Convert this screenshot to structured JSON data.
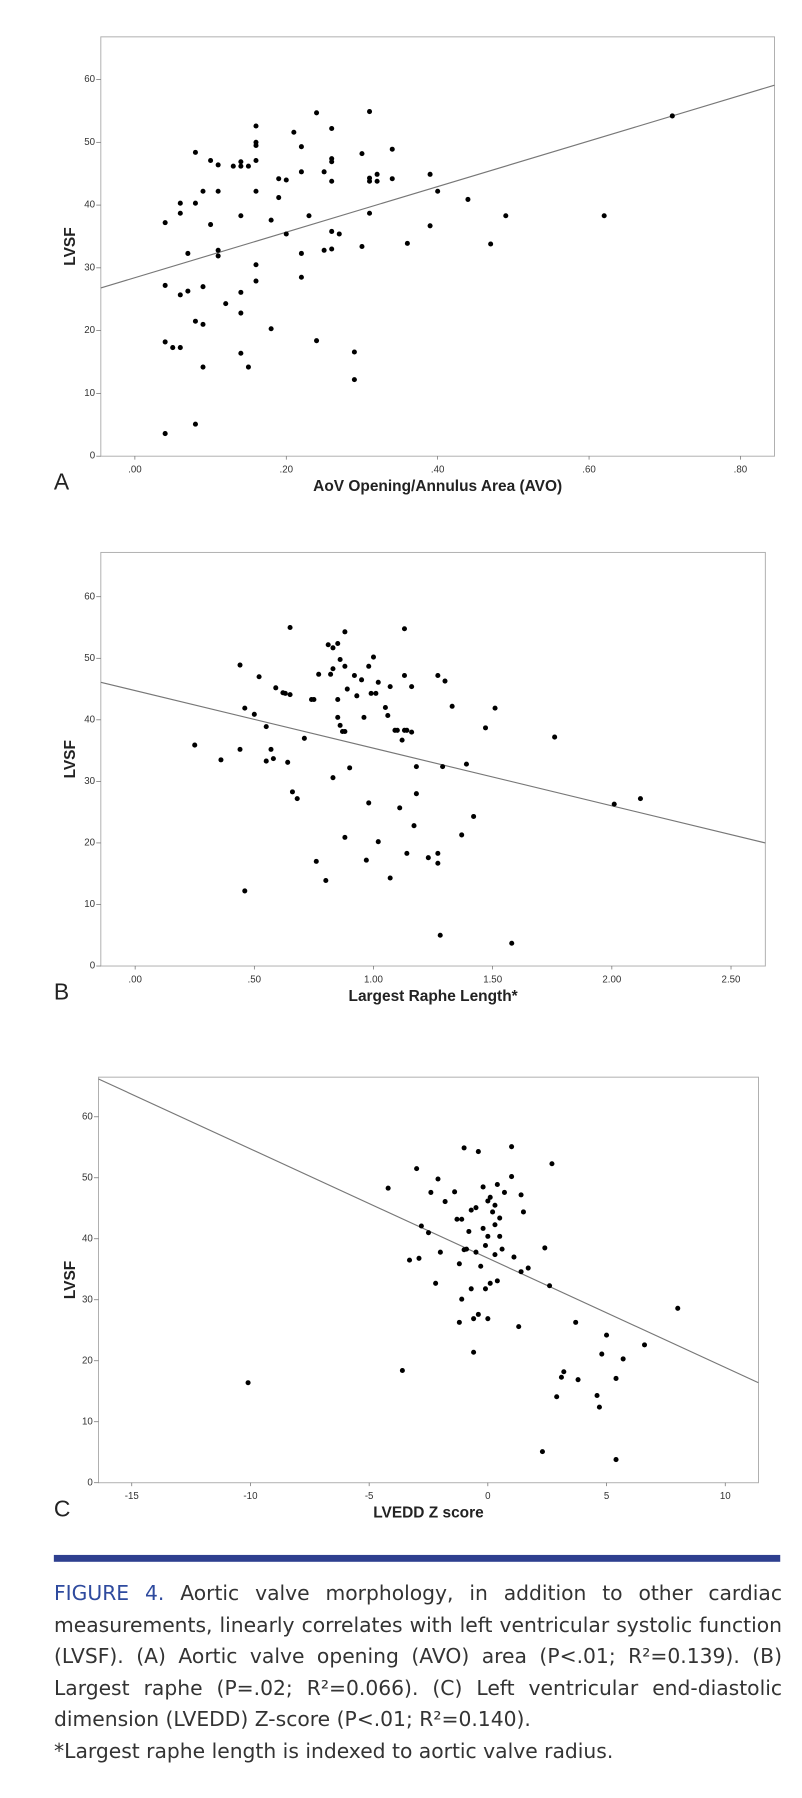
{
  "chart_data": [
    {
      "type": "scatter",
      "panel": "A",
      "x_label": "AoV Opening/Annulus Area (AVO)",
      "y_label": "LVSF",
      "color": "#000000",
      "xlim": [
        -0.045,
        0.845
      ],
      "ylim": [
        0,
        66.8
      ],
      "xticks": [
        {
          "value": 0,
          "label": ".00"
        },
        {
          "value": 0.2,
          "label": ".20"
        },
        {
          "value": 0.4,
          "label": ".40"
        },
        {
          "value": 0.6,
          "label": ".60"
        },
        {
          "value": 0.8,
          "label": ".80"
        }
      ],
      "yticks": [
        0,
        10,
        20,
        30,
        40,
        50,
        60
      ],
      "trend": {
        "color": "#777777",
        "x": [
          -0.045,
          0.845
        ],
        "y": [
          26.8,
          59.1
        ]
      },
      "x": [
        0.04,
        0.08,
        0.04,
        0.04,
        0.04,
        0.05,
        0.06,
        0.06,
        0.06,
        0.06,
        0.07,
        0.07,
        0.08,
        0.08,
        0.09,
        0.08,
        0.09,
        0.09,
        0.09,
        0.1,
        0.1,
        0.11,
        0.11,
        0.11,
        0.11,
        0.12,
        0.13,
        0.14,
        0.14,
        0.14,
        0.14,
        0.14,
        0.14,
        0.15,
        0.15,
        0.16,
        0.16,
        0.16,
        0.16,
        0.16,
        0.16,
        0.16,
        0.18,
        0.18,
        0.19,
        0.19,
        0.2,
        0.2,
        0.21,
        0.22,
        0.22,
        0.22,
        0.22,
        0.23,
        0.24,
        0.24,
        0.25,
        0.25,
        0.26,
        0.26,
        0.26,
        0.26,
        0.26,
        0.26,
        0.27,
        0.29,
        0.29,
        0.3,
        0.3,
        0.31,
        0.31,
        0.31,
        0.31,
        0.32,
        0.32,
        0.34,
        0.34,
        0.36,
        0.39,
        0.39,
        0.4,
        0.44,
        0.47,
        0.49,
        0.62,
        0.71
      ],
      "values": [
        3.6,
        5.1,
        37.2,
        18.2,
        27.2,
        17.3,
        17.3,
        25.7,
        38.7,
        40.3,
        32.3,
        26.3,
        21.5,
        48.4,
        14.2,
        40.3,
        27,
        42.2,
        21,
        36.9,
        47.1,
        42.2,
        31.9,
        32.8,
        46.4,
        24.3,
        46.2,
        26.1,
        46.2,
        46.9,
        38.3,
        16.4,
        22.8,
        14.2,
        46.2,
        52.6,
        50,
        49.5,
        42.2,
        27.9,
        47.1,
        30.5,
        20.3,
        37.6,
        41.2,
        44.2,
        35.4,
        44,
        51.6,
        49.3,
        32.3,
        45.3,
        28.5,
        38.3,
        54.7,
        18.4,
        32.8,
        45.3,
        52.2,
        35.8,
        33,
        46.9,
        43.8,
        47.4,
        35.4,
        16.6,
        12.2,
        33.4,
        48.2,
        44.3,
        38.7,
        43.8,
        54.9,
        44.9,
        43.8,
        44.2,
        48.9,
        33.9,
        44.9,
        36.7,
        42.2,
        40.9,
        33.8,
        38.3,
        38.3,
        54.2
      ]
    },
    {
      "type": "scatter",
      "panel": "B",
      "x_label": "Largest Raphe Length*",
      "y_label": "LVSF",
      "color": "#000000",
      "xlim": [
        -0.144,
        2.644
      ],
      "ylim": [
        0,
        67.2
      ],
      "xticks": [
        {
          "value": 0,
          "label": ".00"
        },
        {
          "value": 0.5,
          "label": ".50"
        },
        {
          "value": 1,
          "label": "1.00"
        },
        {
          "value": 1.5,
          "label": "1.50"
        },
        {
          "value": 2,
          "label": "2.00"
        },
        {
          "value": 2.5,
          "label": "2.50"
        }
      ],
      "yticks": [
        0,
        10,
        20,
        30,
        40,
        50,
        60
      ],
      "trend": {
        "color": "#777777",
        "x": [
          -0.144,
          2.644
        ],
        "y": [
          46.1,
          20
        ]
      },
      "x": [
        0.25,
        0.36,
        0.44,
        0.44,
        0.46,
        0.46,
        0.5,
        0.52,
        0.55,
        0.55,
        0.57,
        0.58,
        0.59,
        0.62,
        0.63,
        0.64,
        0.65,
        0.65,
        0.66,
        0.68,
        0.71,
        0.74,
        0.75,
        0.76,
        0.77,
        0.8,
        0.81,
        0.82,
        0.83,
        0.83,
        0.83,
        0.85,
        0.85,
        0.85,
        0.86,
        0.86,
        0.87,
        0.88,
        0.88,
        0.88,
        0.88,
        0.89,
        0.9,
        0.92,
        0.93,
        0.95,
        0.96,
        0.97,
        0.98,
        0.98,
        0.99,
        1,
        1.01,
        1.02,
        1.02,
        1.05,
        1.06,
        1.07,
        1.07,
        1.09,
        1.1,
        1.11,
        1.12,
        1.13,
        1.13,
        1.13,
        1.14,
        1.14,
        1.16,
        1.16,
        1.17,
        1.18,
        1.18,
        1.23,
        1.27,
        1.27,
        1.27,
        1.28,
        1.29,
        1.3,
        1.33,
        1.37,
        1.39,
        1.42,
        1.47,
        1.51,
        1.58,
        1.76,
        2.01,
        2.12
      ],
      "values": [
        35.9,
        33.5,
        48.9,
        35.2,
        12.2,
        41.9,
        40.9,
        47,
        38.9,
        33.3,
        35.2,
        33.7,
        45.2,
        44.4,
        44.3,
        33.1,
        55,
        44.1,
        28.3,
        27.2,
        37,
        43.3,
        43.3,
        17,
        47.4,
        13.9,
        52.2,
        47.4,
        30.6,
        51.7,
        48.3,
        43.3,
        40.4,
        52.4,
        49.8,
        39.1,
        38.1,
        54.3,
        20.9,
        38.1,
        48.7,
        45,
        32.2,
        47.2,
        43.9,
        46.5,
        40.4,
        17.2,
        48.7,
        26.5,
        44.3,
        50.2,
        44.3,
        20.2,
        46.1,
        42,
        40.7,
        14.3,
        45.4,
        38.3,
        38.3,
        25.7,
        36.7,
        54.8,
        38.3,
        47.2,
        18.3,
        38.3,
        45.4,
        38,
        22.8,
        28,
        32.4,
        17.6,
        47.2,
        18.3,
        16.7,
        5,
        32.4,
        46.3,
        42.2,
        21.3,
        32.8,
        24.3,
        38.7,
        41.9,
        3.7,
        37.2,
        26.3,
        27.2
      ]
    },
    {
      "type": "scatter",
      "panel": "C",
      "x_label": "LVEDD Z score",
      "y_label": "LVSF",
      "color": "#000000",
      "xlim": [
        -16.4,
        11.4
      ],
      "ylim": [
        0,
        66.5
      ],
      "xticks": [
        -15,
        -10,
        -5,
        0,
        5,
        10
      ],
      "yticks": [
        0,
        10,
        20,
        30,
        40,
        50,
        60
      ],
      "trend": {
        "color": "#777777",
        "x": [
          -16.4,
          11.4
        ],
        "y": [
          66.2,
          16.4
        ]
      },
      "x": [
        -10.1,
        -4.2,
        -3.6,
        -3.3,
        -3,
        -2.9,
        -2.8,
        -2.5,
        -2.4,
        -2.2,
        -2.1,
        -2,
        -1.8,
        -1.4,
        -1.3,
        -1.2,
        -1.2,
        -1.1,
        -1.1,
        -1,
        -1,
        -0.9,
        -0.8,
        -0.7,
        -0.7,
        -0.6,
        -0.6,
        -0.5,
        -0.5,
        -0.4,
        -0.4,
        -0.3,
        -0.2,
        -0.2,
        -0.1,
        -0.1,
        0,
        0,
        0,
        0.1,
        0.1,
        0.2,
        0.3,
        0.3,
        0.3,
        0.4,
        0.4,
        0.5,
        0.5,
        0.6,
        0.7,
        1,
        1,
        1.1,
        1.3,
        1.4,
        1.4,
        1.5,
        1.7,
        2.3,
        2.4,
        2.6,
        2.7,
        2.9,
        3.1,
        3.2,
        3.7,
        3.8,
        4.6,
        4.7,
        4.8,
        5,
        5.4,
        5.4,
        5.7,
        6.6,
        8
      ],
      "values": [
        16.4,
        48.3,
        18.4,
        36.5,
        51.5,
        36.8,
        42.1,
        41,
        47.6,
        32.7,
        49.8,
        37.8,
        46.1,
        47.7,
        43.2,
        26.3,
        35.9,
        30.1,
        43.2,
        54.9,
        38.2,
        38.3,
        41.2,
        31.8,
        44.7,
        26.9,
        21.4,
        45.1,
        37.8,
        54.3,
        27.6,
        35.5,
        41.7,
        48.5,
        38.9,
        31.8,
        46.2,
        40.4,
        26.9,
        32.7,
        46.8,
        44.4,
        37.4,
        42.3,
        45.5,
        33.1,
        48.9,
        43.4,
        40.4,
        38.3,
        47.6,
        55.1,
        50.2,
        37,
        25.6,
        34.6,
        47.2,
        44.4,
        35.2,
        5.1,
        38.5,
        32.3,
        52.3,
        14.1,
        17.3,
        18.2,
        26.3,
        16.9,
        14.3,
        12.4,
        21.1,
        24.2,
        17.1,
        3.8,
        20.3,
        22.6,
        28.6
      ]
    }
  ],
  "caption": {
    "label": "FIGURE 4.",
    "text": "Aortic valve morphology, in addition to other cardiac measurements, linearly correlates with left ventricular systolic function (LVSF). (A) Aortic valve opening (AVO) area (P<.01; R²=0.139). (B) Largest raphe (P=.02; R²=0.066). (C) Left ventricular end-diastolic dimension (LVEDD) Z-score (P<.01; R²=0.140).",
    "footnote": "*Largest raphe length is indexed to aortic valve radius."
  }
}
